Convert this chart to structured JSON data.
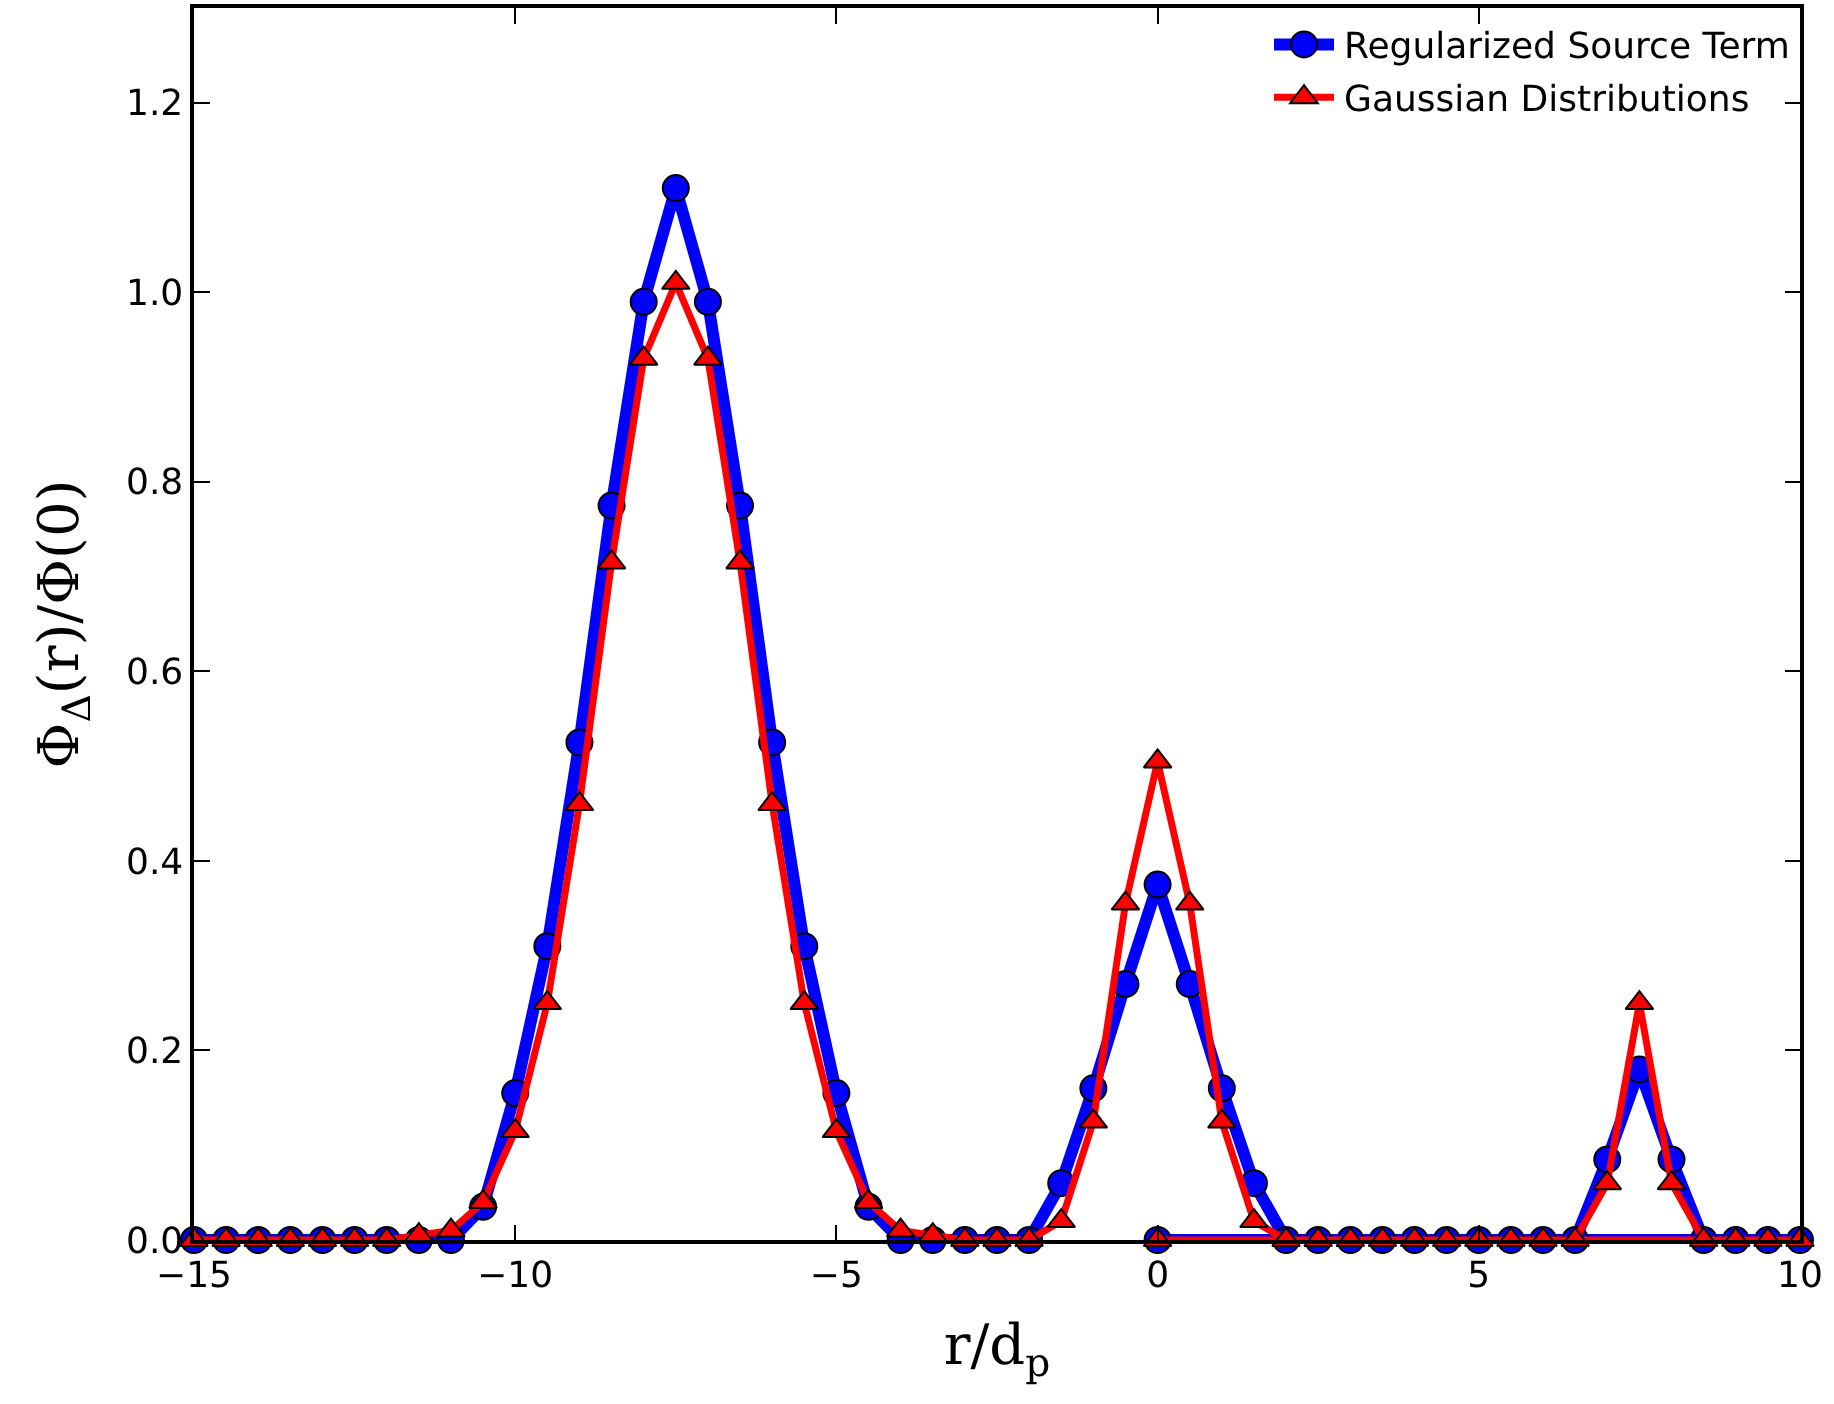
{
  "chart_data": {
    "type": "line",
    "xlabel": "r/d$_{p}$",
    "ylabel": "Φ$_{Δ}$(r)/Φ(0)",
    "x": [
      -15,
      -14.5,
      -14,
      -13.5,
      -13,
      -12.5,
      -12,
      -11.5,
      -11,
      -10.5,
      -10,
      -9.5,
      -9,
      -8.5,
      -8,
      -7.5,
      -7,
      -6.5,
      -6,
      -5.5,
      -5,
      -4.5,
      -4,
      -3.5,
      -3,
      -2.5,
      -2,
      -1.5,
      -1,
      -0.5,
      0,
      0.5,
      1,
      1.5,
      2,
      2.5,
      3,
      3.5,
      4,
      4.5,
      5,
      5.5,
      6,
      6.5,
      7,
      7.5,
      8,
      8.5,
      9,
      9.5,
      10,
      0
    ],
    "series": [
      {
        "name": "Regularized Source Term",
        "color": "#0000ff",
        "marker": "circle",
        "values": [
          0,
          0,
          0,
          0,
          0,
          0,
          0,
          0,
          0,
          0.035,
          0.155,
          0.31,
          0.525,
          0.775,
          0.99,
          1.11,
          0.99,
          0.775,
          0.525,
          0.31,
          0.155,
          0.035,
          0,
          0,
          0,
          0,
          0,
          0.06,
          0.16,
          0.27,
          0.375,
          0.27,
          0.16,
          0.06,
          0,
          0,
          0,
          0,
          0,
          0,
          0,
          0,
          0,
          0,
          0.085,
          0.18,
          0.085,
          0,
          0,
          0,
          0,
          0
        ]
      },
      {
        "name": "Gaussian Distributions",
        "color": "#ff0000",
        "marker": "triangle",
        "values": [
          0,
          0,
          0,
          0,
          0,
          0,
          0,
          0.005,
          0.01,
          0.04,
          0.115,
          0.25,
          0.46,
          0.715,
          0.93,
          1.01,
          0.93,
          0.715,
          0.46,
          0.25,
          0.115,
          0.04,
          0.01,
          0.005,
          0,
          0,
          0,
          0.02,
          0.125,
          0.355,
          0.505,
          0.355,
          0.125,
          0.02,
          0,
          0,
          0,
          0,
          0,
          0,
          0,
          0,
          0,
          0,
          0.06,
          0.25,
          0.06,
          0,
          0,
          0,
          0,
          0
        ]
      }
    ],
    "xlim": [
      -15,
      10
    ],
    "xticks": [
      {
        "value": -15,
        "label": "−15"
      },
      {
        "value": -10,
        "label": "−10"
      },
      {
        "value": -5,
        "label": "−5"
      },
      0,
      5,
      10
    ],
    "ylim": [
      0,
      1.3
    ],
    "yticks": [
      {
        "value": 0,
        "label": "0.0"
      },
      0.2,
      0.4,
      0.6,
      0.8,
      {
        "value": 1,
        "label": "1.0"
      },
      1.2
    ],
    "legend": "top right",
    "line_style": "solid"
  }
}
